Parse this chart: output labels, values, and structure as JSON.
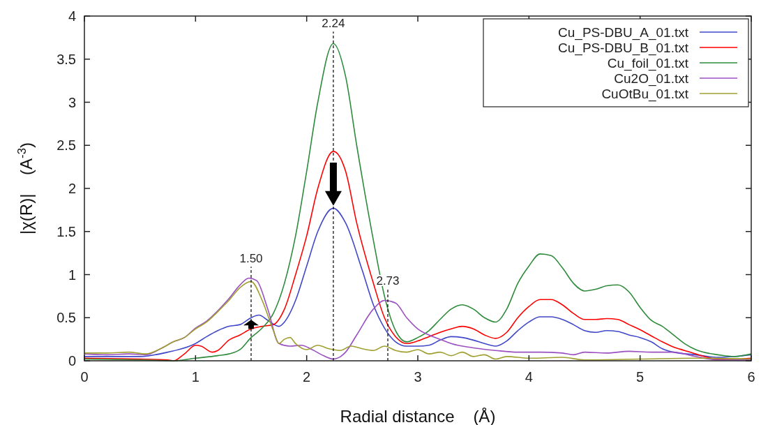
{
  "chart_data": {
    "type": "line",
    "xlabel": "Radial distance    (Å)",
    "ylabel": "|χ(R)|    (A$^{-3}$)",
    "xlim": [
      0,
      6
    ],
    "ylim": [
      0,
      4
    ],
    "xticks": [
      0,
      1,
      2,
      3,
      4,
      5,
      6
    ],
    "yticks": [
      0,
      0.5,
      1,
      1.5,
      2,
      2.5,
      3,
      3.5,
      4
    ],
    "grid": false,
    "legend": "top right",
    "line_style": "solid",
    "marker": "none",
    "ref_lines": [
      {
        "axis": "x",
        "value": 1.5,
        "label": "1.50",
        "line_style": "dashed",
        "color": "#000000"
      },
      {
        "axis": "x",
        "value": 2.24,
        "label": "2.24",
        "line_style": "dashed",
        "color": "#000000"
      },
      {
        "axis": "x",
        "value": 2.73,
        "label": "2.73",
        "line_style": "dashed",
        "color": "#000000"
      }
    ],
    "series": [
      {
        "name": "Cu_PS-DBU_A_01.txt",
        "color": "#4048c8",
        "x": [
          0,
          0.5,
          0.75,
          1,
          1.1,
          1.2,
          1.3,
          1.4,
          1.5,
          1.57,
          1.65,
          1.75,
          1.8,
          1.9,
          2,
          2.1,
          2.24,
          2.35,
          2.5,
          2.6,
          2.7,
          2.8,
          2.9,
          3,
          3.1,
          3.2,
          3.3,
          3.4,
          3.5,
          3.6,
          3.7,
          3.8,
          3.9,
          4,
          4.1,
          4.2,
          4.3,
          4.4,
          4.5,
          4.6,
          4.7,
          4.8,
          4.9,
          5,
          5.1,
          5.2,
          5.3,
          5.5,
          5.7,
          5.85,
          6
        ],
        "values": [
          0.05,
          0.05,
          0.1,
          0.2,
          0.28,
          0.35,
          0.4,
          0.42,
          0.5,
          0.53,
          0.47,
          0.4,
          0.45,
          0.7,
          1.1,
          1.5,
          1.77,
          1.6,
          1.05,
          0.65,
          0.38,
          0.22,
          0.17,
          0.17,
          0.18,
          0.24,
          0.28,
          0.27,
          0.24,
          0.2,
          0.17,
          0.23,
          0.35,
          0.45,
          0.51,
          0.51,
          0.48,
          0.42,
          0.35,
          0.33,
          0.35,
          0.34,
          0.3,
          0.27,
          0.22,
          0.14,
          0.1,
          0.07,
          0.04,
          0.05,
          0.07
        ]
      },
      {
        "name": "Cu_PS-DBU_B_01.txt",
        "color": "#ff0000",
        "x": [
          0,
          0.5,
          0.75,
          0.8,
          0.9,
          1,
          1.05,
          1.15,
          1.2,
          1.3,
          1.4,
          1.5,
          1.6,
          1.7,
          1.8,
          1.9,
          2,
          2.1,
          2.24,
          2.35,
          2.45,
          2.6,
          2.7,
          2.8,
          2.9,
          3,
          3.1,
          3.2,
          3.3,
          3.4,
          3.5,
          3.6,
          3.7,
          3.8,
          3.9,
          4,
          4.1,
          4.2,
          4.3,
          4.4,
          4.5,
          4.6,
          4.7,
          4.8,
          4.9,
          5,
          5.1,
          5.2,
          5.3,
          5.4,
          5.5,
          5.7,
          5.85,
          6
        ],
        "values": [
          0.03,
          0.02,
          0.01,
          0,
          0.08,
          0.18,
          0.17,
          0.1,
          0.12,
          0.24,
          0.3,
          0.37,
          0.4,
          0.42,
          0.6,
          1,
          1.45,
          2,
          2.43,
          2.2,
          1.6,
          0.9,
          0.5,
          0.28,
          0.2,
          0.23,
          0.28,
          0.33,
          0.37,
          0.4,
          0.37,
          0.3,
          0.26,
          0.33,
          0.5,
          0.63,
          0.71,
          0.71,
          0.65,
          0.55,
          0.48,
          0.48,
          0.49,
          0.48,
          0.42,
          0.36,
          0.29,
          0.22,
          0.16,
          0.12,
          0.08,
          0.02,
          0.02,
          0.03
        ]
      },
      {
        "name": "Cu_foil_01.txt",
        "color": "#2e8b3c",
        "x": [
          0,
          0.5,
          0.8,
          1,
          1.2,
          1.3,
          1.4,
          1.5,
          1.6,
          1.7,
          1.8,
          1.9,
          2,
          2.1,
          2.24,
          2.35,
          2.45,
          2.6,
          2.7,
          2.8,
          2.9,
          3,
          3.1,
          3.2,
          3.3,
          3.4,
          3.5,
          3.6,
          3.7,
          3.8,
          3.9,
          4,
          4.1,
          4.2,
          4.3,
          4.4,
          4.5,
          4.6,
          4.7,
          4.8,
          4.9,
          5,
          5.1,
          5.2,
          5.3,
          5.4,
          5.5,
          5.7,
          5.85,
          6
        ],
        "values": [
          0.02,
          0.01,
          0,
          0.03,
          0.06,
          0.08,
          0.13,
          0.27,
          0.38,
          0.55,
          0.9,
          1.45,
          2.2,
          3,
          3.68,
          3.3,
          2.5,
          1.4,
          0.75,
          0.35,
          0.22,
          0.27,
          0.35,
          0.48,
          0.6,
          0.65,
          0.6,
          0.5,
          0.45,
          0.6,
          0.9,
          1.1,
          1.24,
          1.22,
          1.08,
          0.9,
          0.81,
          0.83,
          0.87,
          0.88,
          0.8,
          0.62,
          0.47,
          0.4,
          0.3,
          0.2,
          0.13,
          0.07,
          0.05,
          0.08
        ]
      },
      {
        "name": "Cu2O_01.txt",
        "color": "#9b4fc0",
        "x": [
          0,
          0.2,
          0.4,
          0.55,
          0.7,
          0.8,
          0.9,
          1,
          1.1,
          1.2,
          1.3,
          1.4,
          1.48,
          1.55,
          1.65,
          1.75,
          1.85,
          1.95,
          2.05,
          2.15,
          2.24,
          2.35,
          2.45,
          2.6,
          2.7,
          2.8,
          2.9,
          3,
          3.1,
          3.2,
          3.3,
          3.5,
          3.7,
          3.9,
          4.1,
          4.3,
          4.4,
          4.5,
          4.7,
          4.9,
          5.1,
          5.3,
          5.5,
          5.7,
          6
        ],
        "values": [
          0.08,
          0.07,
          0.08,
          0.07,
          0.15,
          0.22,
          0.27,
          0.38,
          0.46,
          0.58,
          0.72,
          0.88,
          0.96,
          0.93,
          0.6,
          0.2,
          0.17,
          0.18,
          0.13,
          0.06,
          0.02,
          0.1,
          0.3,
          0.6,
          0.7,
          0.67,
          0.5,
          0.37,
          0.3,
          0.25,
          0.2,
          0.15,
          0.12,
          0.1,
          0.1,
          0.09,
          0.07,
          0.1,
          0.09,
          0.11,
          0.1,
          0.1,
          0.05,
          0.01,
          0.01
        ]
      },
      {
        "name": "CuOtBu_01.txt",
        "color": "#a0a030",
        "x": [
          0,
          0.2,
          0.4,
          0.55,
          0.7,
          0.8,
          0.9,
          1,
          1.1,
          1.2,
          1.3,
          1.4,
          1.5,
          1.6,
          1.7,
          1.75,
          1.8,
          1.85,
          1.9,
          2,
          2.1,
          2.2,
          2.3,
          2.4,
          2.5,
          2.6,
          2.7,
          2.8,
          2.9,
          3,
          3.1,
          3.2,
          3.3,
          3.4,
          3.5,
          3.6,
          3.7,
          3.8,
          4,
          4.3,
          4.5,
          5,
          5.5,
          6
        ],
        "values": [
          0.09,
          0.09,
          0.1,
          0.08,
          0.15,
          0.22,
          0.27,
          0.37,
          0.45,
          0.57,
          0.7,
          0.85,
          0.92,
          0.7,
          0.35,
          0.2,
          0.25,
          0.27,
          0.2,
          0.13,
          0.18,
          0.14,
          0.12,
          0.17,
          0.14,
          0.12,
          0.17,
          0.12,
          0.1,
          0.13,
          0.08,
          0.1,
          0.06,
          0.1,
          0.05,
          0.07,
          0.02,
          0.05,
          0.03,
          0.04,
          0.01,
          0.02,
          0.03,
          0.02
        ]
      }
    ]
  }
}
